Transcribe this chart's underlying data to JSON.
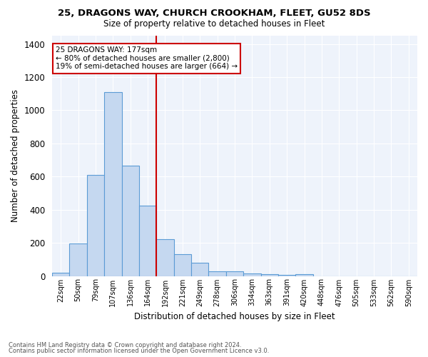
{
  "title1": "25, DRAGONS WAY, CHURCH CROOKHAM, FLEET, GU52 8DS",
  "title2": "Size of property relative to detached houses in Fleet",
  "xlabel": "Distribution of detached houses by size in Fleet",
  "ylabel": "Number of detached properties",
  "footer1": "Contains HM Land Registry data © Crown copyright and database right 2024.",
  "footer2": "Contains public sector information licensed under the Open Government Licence v3.0.",
  "annotation_title": "25 DRAGONS WAY: 177sqm",
  "annotation_line1": "← 80% of detached houses are smaller (2,800)",
  "annotation_line2": "19% of semi-detached houses are larger (664) →",
  "bar_labels": [
    "22sqm",
    "50sqm",
    "79sqm",
    "107sqm",
    "136sqm",
    "164sqm",
    "192sqm",
    "221sqm",
    "249sqm",
    "278sqm",
    "306sqm",
    "334sqm",
    "363sqm",
    "391sqm",
    "420sqm",
    "448sqm",
    "476sqm",
    "505sqm",
    "533sqm",
    "562sqm",
    "590sqm"
  ],
  "bar_values": [
    18,
    195,
    610,
    1110,
    665,
    425,
    220,
    130,
    80,
    30,
    28,
    15,
    10,
    5,
    10,
    0,
    0,
    0,
    0,
    0,
    0
  ],
  "bar_color": "#c5d8f0",
  "bar_edge_color": "#5b9bd5",
  "vline_x": 5.5,
  "vline_color": "#cc0000",
  "annotation_box_color": "#cc0000",
  "background_color": "#eef3fb",
  "ylim": [
    0,
    1450
  ],
  "yticks": [
    0,
    200,
    400,
    600,
    800,
    1000,
    1200,
    1400
  ]
}
